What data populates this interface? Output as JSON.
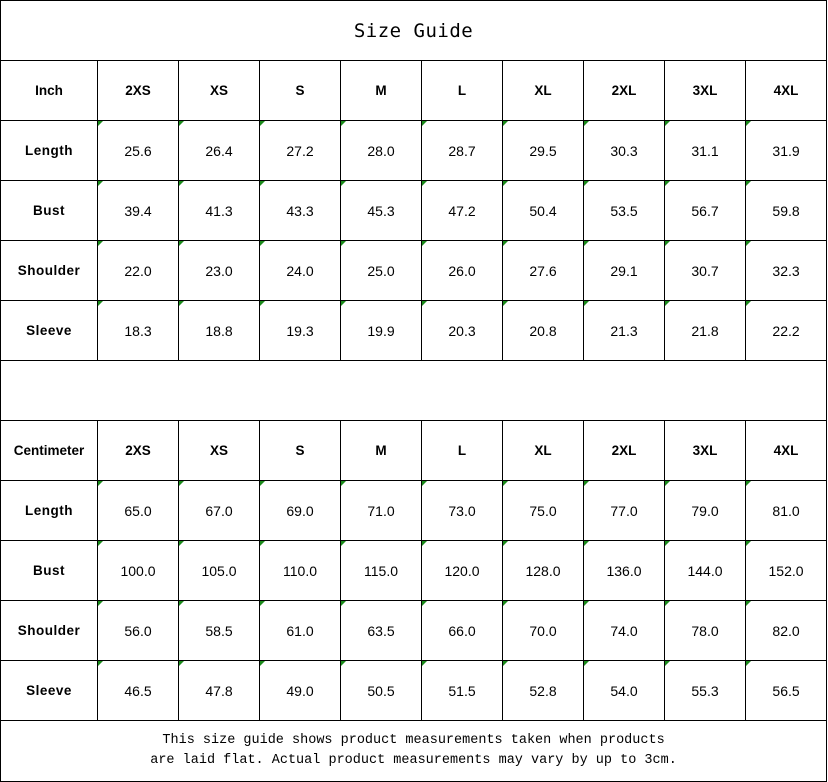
{
  "title": "Size Guide",
  "colors": {
    "marker": "#1a8a1a",
    "border": "#000000"
  },
  "sizes": [
    "2XS",
    "XS",
    "S",
    "M",
    "L",
    "XL",
    "2XL",
    "3XL",
    "4XL"
  ],
  "tables": [
    {
      "unit": "Inch",
      "rows": [
        {
          "label": "Length",
          "values": [
            "25.6",
            "26.4",
            "27.2",
            "28.0",
            "28.7",
            "29.5",
            "30.3",
            "31.1",
            "31.9"
          ]
        },
        {
          "label": "Bust",
          "values": [
            "39.4",
            "41.3",
            "43.3",
            "45.3",
            "47.2",
            "50.4",
            "53.5",
            "56.7",
            "59.8"
          ]
        },
        {
          "label": "Shoulder",
          "values": [
            "22.0",
            "23.0",
            "24.0",
            "25.0",
            "26.0",
            "27.6",
            "29.1",
            "30.7",
            "32.3"
          ]
        },
        {
          "label": "Sleeve",
          "values": [
            "18.3",
            "18.8",
            "19.3",
            "19.9",
            "20.3",
            "20.8",
            "21.3",
            "21.8",
            "22.2"
          ]
        }
      ]
    },
    {
      "unit": "Centimeter",
      "rows": [
        {
          "label": "Length",
          "values": [
            "65.0",
            "67.0",
            "69.0",
            "71.0",
            "73.0",
            "75.0",
            "77.0",
            "79.0",
            "81.0"
          ]
        },
        {
          "label": "Bust",
          "values": [
            "100.0",
            "105.0",
            "110.0",
            "115.0",
            "120.0",
            "128.0",
            "136.0",
            "144.0",
            "152.0"
          ]
        },
        {
          "label": "Shoulder",
          "values": [
            "56.0",
            "58.5",
            "61.0",
            "63.5",
            "66.0",
            "70.0",
            "74.0",
            "78.0",
            "82.0"
          ]
        },
        {
          "label": "Sleeve",
          "values": [
            "46.5",
            "47.8",
            "49.0",
            "50.5",
            "51.5",
            "52.8",
            "54.0",
            "55.3",
            "56.5"
          ]
        }
      ]
    }
  ],
  "note": {
    "line1": "This size guide shows product measurements taken when products",
    "line2": "are laid flat. Actual product measurements may vary by up to 3cm."
  }
}
